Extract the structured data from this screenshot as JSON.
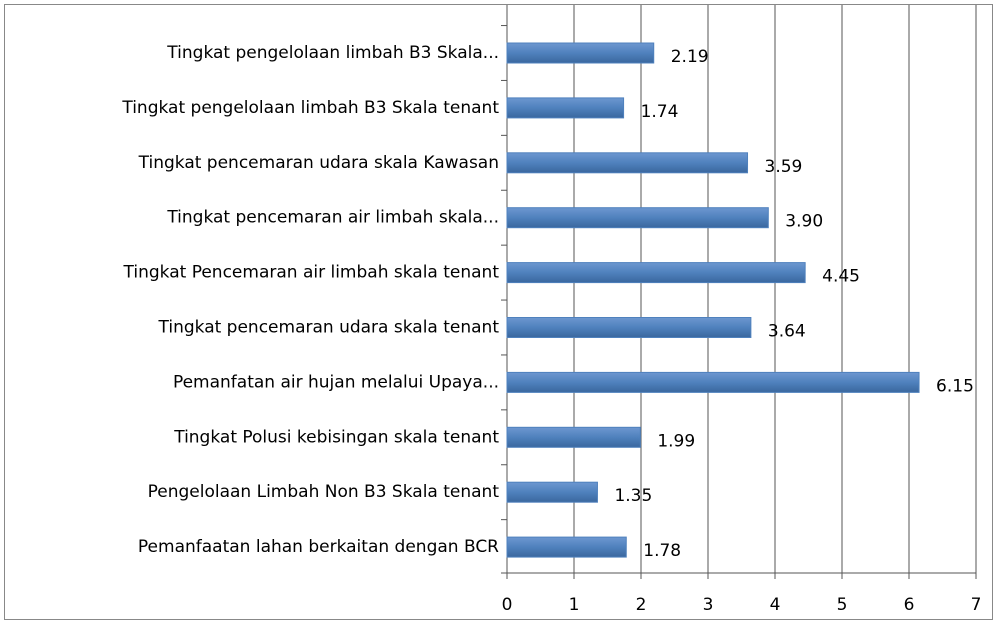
{
  "chart_data": {
    "type": "bar",
    "orientation": "horizontal",
    "categories": [
      "Tingkat pengelolaan limbah B3 Skala...",
      "Tingkat pengelolaan limbah B3 Skala tenant",
      "Tingkat pencemaran udara skala Kawasan",
      "Tingkat pencemaran air limbah skala...",
      "Tingkat Pencemaran air limbah skala tenant",
      "Tingkat pencemaran udara skala tenant",
      "Pemanfatan air hujan melalui Upaya...",
      "Tingkat Polusi kebisingan skala tenant",
      "Pengelolaan Limbah Non B3 Skala tenant",
      "Pemanfaatan lahan berkaitan dengan BCR"
    ],
    "values": [
      2.19,
      1.74,
      3.59,
      3.9,
      4.45,
      3.64,
      6.15,
      1.99,
      1.35,
      1.78
    ],
    "value_labels": [
      "2.19",
      "1.74",
      "3.59",
      "3.90",
      "4.45",
      "3.64",
      "6.15",
      "1.99",
      "1.35",
      "1.78"
    ],
    "color": "#4f81bd",
    "xlim": [
      0,
      7
    ],
    "xticks": [
      0,
      1,
      2,
      3,
      4,
      5,
      6,
      7
    ],
    "grid": true
  }
}
